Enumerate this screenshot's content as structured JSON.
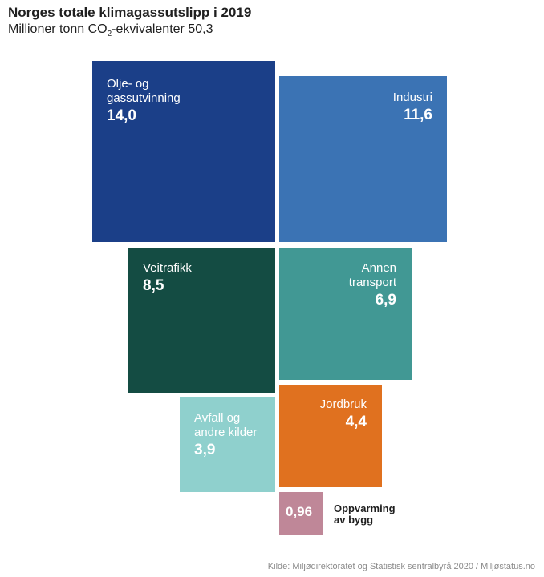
{
  "header": {
    "title": "Norges totale klimagassutslipp i 2019",
    "subtitle_prefix": "Millioner tonn CO",
    "subtitle_sub": "2",
    "subtitle_suffix": "-ekvivalenter 50,3"
  },
  "chart_data": {
    "type": "treemap",
    "title": "Norges totale klimagassutslipp i 2019",
    "subtitle": "Millioner tonn CO2-ekvivalenter 50,3",
    "total": 50.3,
    "unit": "Millioner tonn CO2-ekvivalenter",
    "categories": [
      {
        "name": "Olje- og gassutvinning",
        "value": 14.0,
        "label": "14,0",
        "color": "#1b3f88"
      },
      {
        "name": "Industri",
        "value": 11.6,
        "label": "11,6",
        "color": "#3b73b4"
      },
      {
        "name": "Veitrafikk",
        "value": 8.5,
        "label": "8,5",
        "color": "#144c43"
      },
      {
        "name": "Annen transport",
        "value": 6.9,
        "label": "6,9",
        "color": "#419894"
      },
      {
        "name": "Jordbruk",
        "value": 4.4,
        "label": "4,4",
        "color": "#e0711f"
      },
      {
        "name": "Avfall og andre kilder",
        "value": 3.9,
        "label": "3,9",
        "color": "#8fd0cd"
      },
      {
        "name": "Oppvarming av bygg",
        "value": 0.96,
        "label": "0,96",
        "color": "#bf8798"
      }
    ]
  },
  "labels": {
    "olje_line1": "Olje- og",
    "olje_line2": "gassutvinning",
    "industri": "Industri",
    "veitrafikk": "Veitrafikk",
    "annen_line1": "Annen",
    "annen_line2": "transport",
    "jordbruk": "Jordbruk",
    "avfall_line1": "Avfall og",
    "avfall_line2": "andre kilder",
    "oppvarming_line1": "Oppvarming",
    "oppvarming_line2": "av bygg"
  },
  "footer": {
    "source": "Kilde: Miljødirektoratet og Statistisk sentralbyrå 2020 / Miljøstatus.no"
  }
}
